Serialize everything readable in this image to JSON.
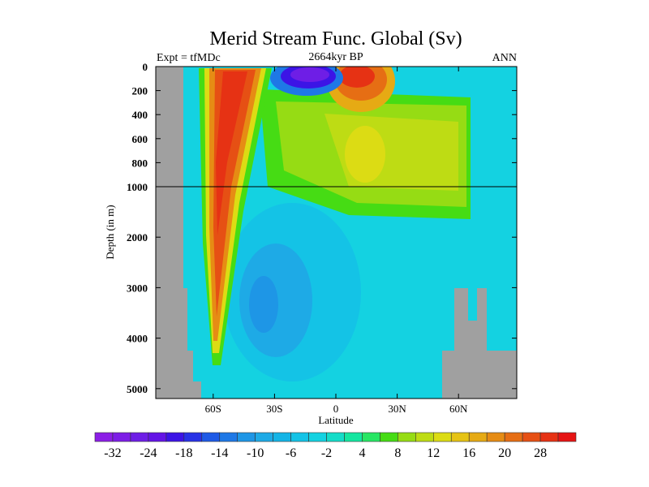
{
  "chart_data": {
    "type": "heatmap",
    "title": "Merid Stream Func. Global (Sv)",
    "subtitle_left": "Expt = tfMDc",
    "subtitle_center": "2664kyr BP",
    "subtitle_right": "ANN",
    "xlabel": "Latitude",
    "ylabel": "Depth (in m)",
    "xlim": [
      -89,
      89
    ],
    "ylim": [
      0,
      5200
    ],
    "x_ticks": [
      {
        "value": -60,
        "label": "60S"
      },
      {
        "value": -30,
        "label": "30S"
      },
      {
        "value": 0,
        "label": "0"
      },
      {
        "value": 30,
        "label": "30N"
      },
      {
        "value": 60,
        "label": "60N"
      }
    ],
    "y_ticks": [
      {
        "value": 0,
        "label": "0"
      },
      {
        "value": 200,
        "label": "200"
      },
      {
        "value": 400,
        "label": "400"
      },
      {
        "value": 600,
        "label": "600"
      },
      {
        "value": 800,
        "label": "800"
      },
      {
        "value": 1000,
        "label": "1000"
      },
      {
        "value": 2000,
        "label": "2000"
      },
      {
        "value": 3000,
        "label": "3000"
      },
      {
        "value": 4000,
        "label": "4000"
      },
      {
        "value": 5000,
        "label": "5000"
      }
    ],
    "y_axis_break_depth": 1000,
    "colorbar": {
      "labels": [
        "-32",
        "-24",
        "-18",
        "-14",
        "-10",
        "-6",
        "-2",
        "4",
        "8",
        "12",
        "16",
        "20",
        "28"
      ],
      "colors": [
        "#8c1ee6",
        "#7d1ee6",
        "#6e1ee6",
        "#6414e6",
        "#3c14e6",
        "#2832e6",
        "#1e5ae6",
        "#1e78e6",
        "#1e96e6",
        "#1eaae6",
        "#14b4e6",
        "#14c3e6",
        "#14d2e1",
        "#14dcc8",
        "#14e6a0",
        "#28e664",
        "#46dc14",
        "#96dc14",
        "#bedc14",
        "#dcdc14",
        "#e6c314",
        "#e6aa14",
        "#e68c14",
        "#e66e14",
        "#e65014",
        "#e63214",
        "#e61414"
      ]
    },
    "features": {
      "southern_ocean_cell_max_sv": 30,
      "antarctic_surface_cell_min_sv": -32,
      "land_color": "#a0a0a0"
    }
  }
}
